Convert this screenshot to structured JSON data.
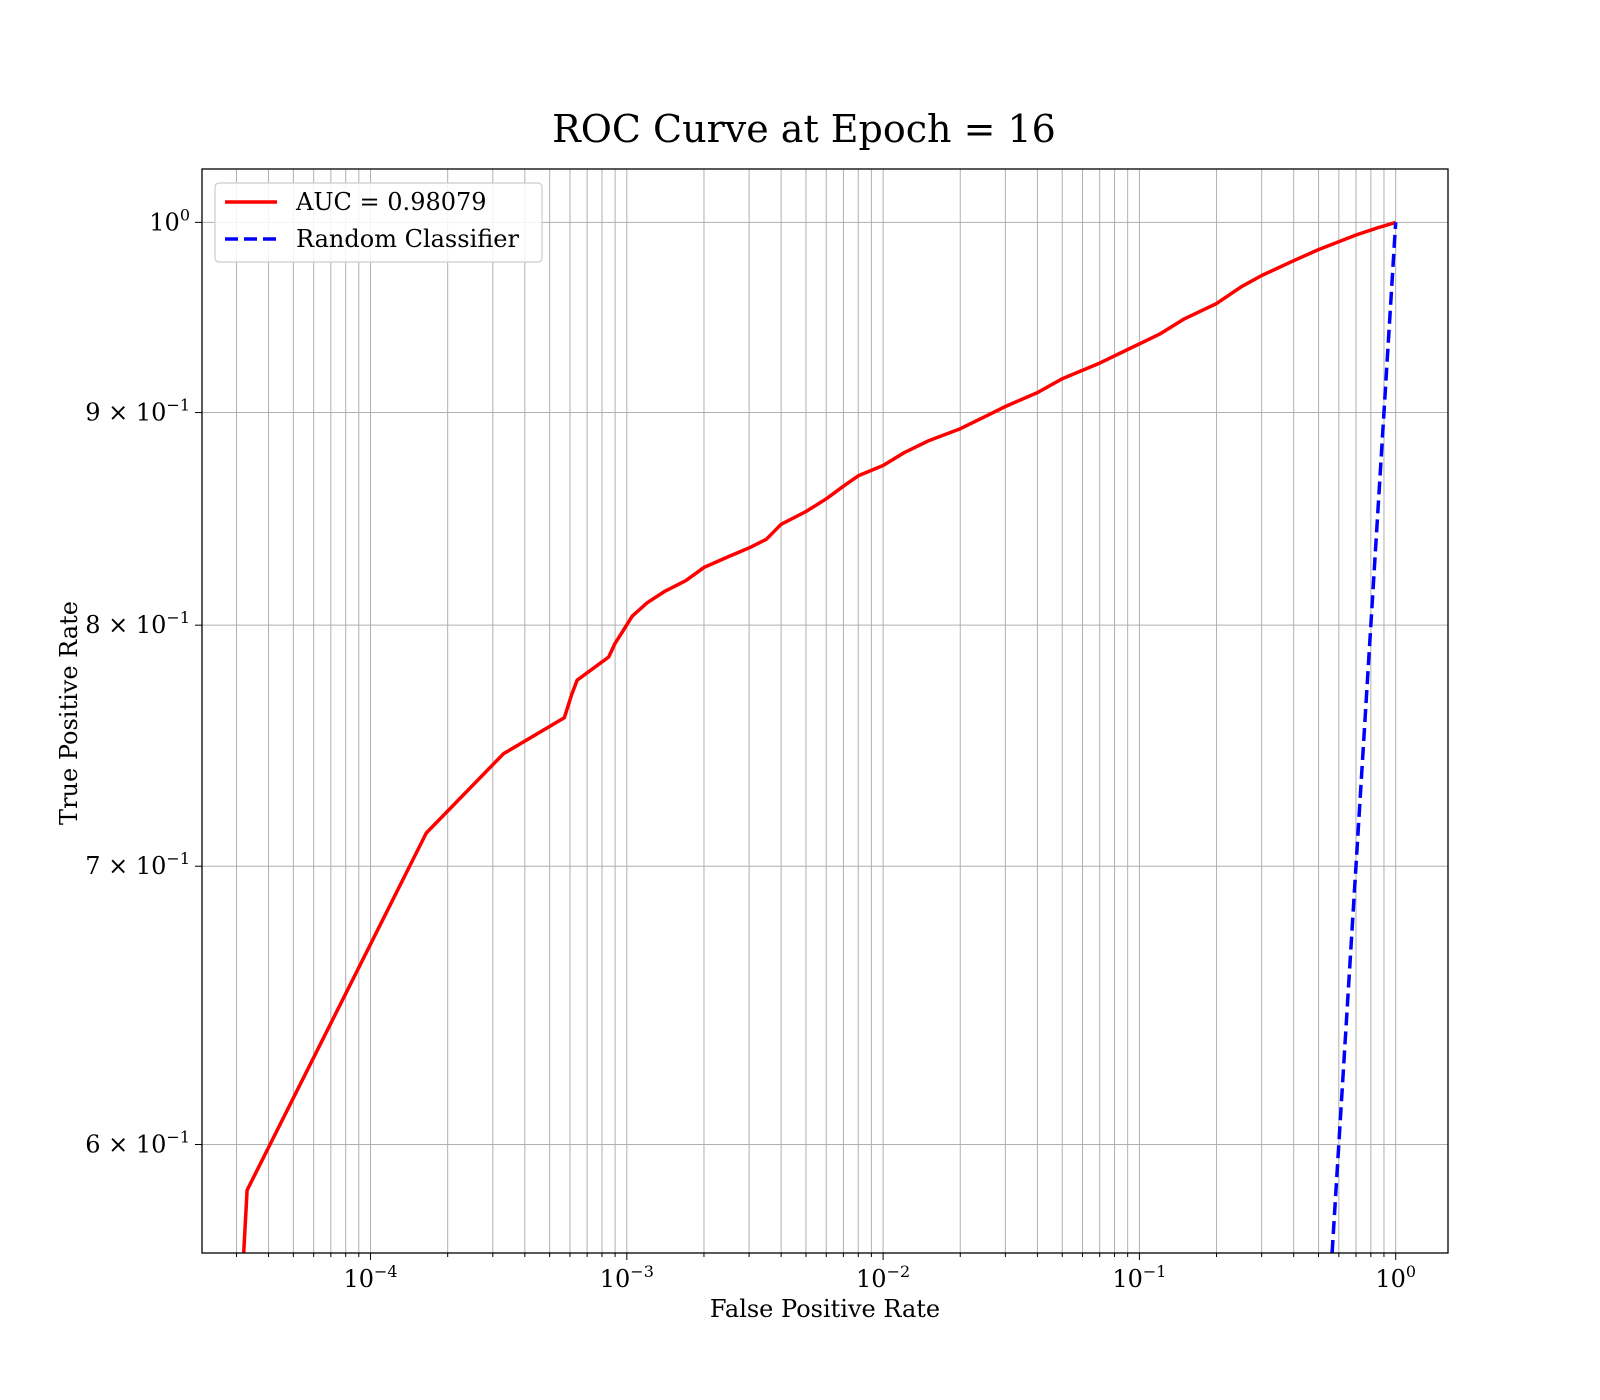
{
  "chart_data": {
    "type": "line",
    "title": "ROC Curve at Epoch = 16",
    "xlabel": "False Positive Rate",
    "ylabel": "True Positive Rate",
    "xscale": "log",
    "yscale": "log",
    "xlim": [
      2.2e-05,
      1.6
    ],
    "ylim": [
      0.565,
      1.03
    ],
    "grid": "both",
    "legend_position": "top-left",
    "x_ticks": [
      {
        "value": 0.0001,
        "base": "10",
        "exp": "−4"
      },
      {
        "value": 0.001,
        "base": "10",
        "exp": "−3"
      },
      {
        "value": 0.01,
        "base": "10",
        "exp": "−2"
      },
      {
        "value": 0.1,
        "base": "10",
        "exp": "−1"
      },
      {
        "value": 1,
        "base": "10",
        "exp": "0"
      }
    ],
    "y_ticks": [
      {
        "value": 1.0,
        "main": "10",
        "exp": "0"
      },
      {
        "value": 0.9,
        "main": "9 × 10",
        "exp": "−1"
      },
      {
        "value": 0.8,
        "main": "8 × 10",
        "exp": "−1"
      },
      {
        "value": 0.7,
        "main": "7 × 10",
        "exp": "−1"
      },
      {
        "value": 0.6,
        "main": "6 × 10",
        "exp": "−1"
      }
    ],
    "series": [
      {
        "name": "AUC = 0.98079",
        "color": "#ff0000",
        "style": "solid",
        "x": [
          3.2e-05,
          3.3e-05,
          0.000165,
          0.00033,
          0.00057,
          0.00061,
          0.00064,
          0.00085,
          0.0009,
          0.00096,
          0.00105,
          0.0012,
          0.0014,
          0.0017,
          0.002,
          0.0025,
          0.003,
          0.0035,
          0.004,
          0.005,
          0.006,
          0.007,
          0.008,
          0.01,
          0.012,
          0.015,
          0.02,
          0.025,
          0.03,
          0.04,
          0.05,
          0.07,
          0.09,
          0.12,
          0.15,
          0.2,
          0.25,
          0.3,
          0.4,
          0.5,
          0.7,
          0.85,
          1.0
        ],
        "y": [
          0.565,
          0.585,
          0.713,
          0.745,
          0.76,
          0.77,
          0.776,
          0.786,
          0.792,
          0.797,
          0.804,
          0.81,
          0.815,
          0.82,
          0.826,
          0.831,
          0.835,
          0.839,
          0.846,
          0.852,
          0.858,
          0.864,
          0.869,
          0.874,
          0.88,
          0.886,
          0.892,
          0.898,
          0.903,
          0.91,
          0.917,
          0.925,
          0.932,
          0.94,
          0.948,
          0.956,
          0.965,
          0.971,
          0.979,
          0.985,
          0.993,
          0.997,
          1.0
        ]
      },
      {
        "name": "Random Classifier",
        "color": "#0000ff",
        "style": "dashed",
        "x": [
          0.565,
          1.0
        ],
        "y": [
          0.565,
          1.0
        ]
      }
    ]
  }
}
